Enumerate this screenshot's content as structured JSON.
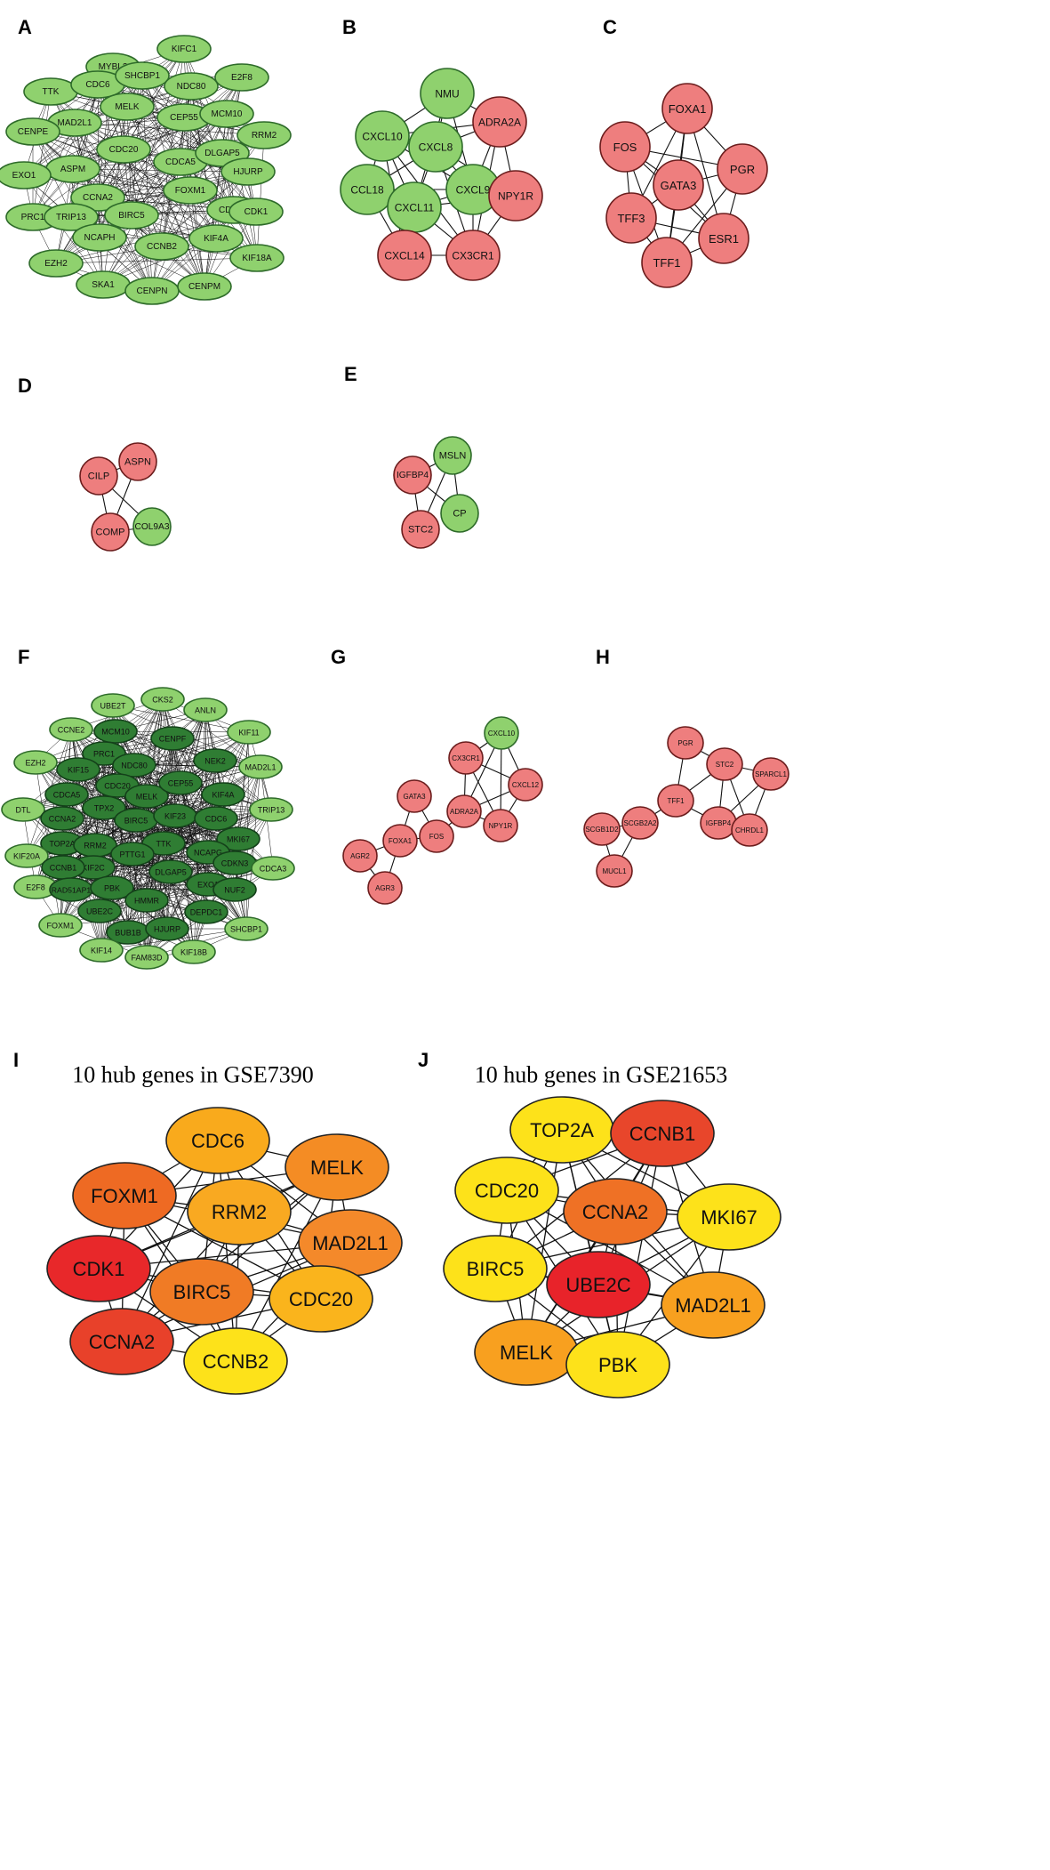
{
  "figure": {
    "panels": [
      {
        "label": "A",
        "title": "",
        "nodes": [
          {
            "id": "MYBL2",
            "fill": "green"
          },
          {
            "id": "KIFC1",
            "fill": "green"
          },
          {
            "id": "TTK",
            "fill": "green"
          },
          {
            "id": "CDC6",
            "fill": "green"
          },
          {
            "id": "SHCBP1",
            "fill": "green"
          },
          {
            "id": "NDC80",
            "fill": "green"
          },
          {
            "id": "E2F8",
            "fill": "green"
          },
          {
            "id": "MAD2L1",
            "fill": "green"
          },
          {
            "id": "MELK",
            "fill": "green"
          },
          {
            "id": "CEP55",
            "fill": "green"
          },
          {
            "id": "MCM10",
            "fill": "green"
          },
          {
            "id": "CENPE",
            "fill": "green"
          },
          {
            "id": "RRM2",
            "fill": "green"
          },
          {
            "id": "CDC20",
            "fill": "green"
          },
          {
            "id": "CDCA5",
            "fill": "green"
          },
          {
            "id": "DLGAP5",
            "fill": "green"
          },
          {
            "id": "ASPM",
            "fill": "green"
          },
          {
            "id": "HJURP",
            "fill": "green"
          },
          {
            "id": "EXO1",
            "fill": "green"
          },
          {
            "id": "CCNA2",
            "fill": "green"
          },
          {
            "id": "FOXM1",
            "fill": "green"
          },
          {
            "id": "PRC1",
            "fill": "green"
          },
          {
            "id": "TRIP13",
            "fill": "green"
          },
          {
            "id": "BIRC5",
            "fill": "green"
          },
          {
            "id": "CDCA3",
            "fill": "green"
          },
          {
            "id": "CDK1",
            "fill": "green"
          },
          {
            "id": "NCAPH",
            "fill": "green"
          },
          {
            "id": "KIF4A",
            "fill": "green"
          },
          {
            "id": "EZH2",
            "fill": "green"
          },
          {
            "id": "CCNB2",
            "fill": "green"
          },
          {
            "id": "KIF18A",
            "fill": "green"
          },
          {
            "id": "SKA1",
            "fill": "green"
          },
          {
            "id": "CENPN",
            "fill": "green"
          },
          {
            "id": "CENPM",
            "fill": "green"
          }
        ]
      },
      {
        "label": "B",
        "title": "",
        "nodes": [
          {
            "id": "NMU",
            "fill": "green"
          },
          {
            "id": "ADRA2A",
            "fill": "red"
          },
          {
            "id": "CXCL10",
            "fill": "green"
          },
          {
            "id": "CXCL8",
            "fill": "green"
          },
          {
            "id": "CCL18",
            "fill": "green"
          },
          {
            "id": "CXCL9",
            "fill": "green"
          },
          {
            "id": "NPY1R",
            "fill": "red"
          },
          {
            "id": "CXCL11",
            "fill": "green"
          },
          {
            "id": "CXCL14",
            "fill": "red"
          },
          {
            "id": "CX3CR1",
            "fill": "red"
          }
        ]
      },
      {
        "label": "C",
        "title": "",
        "nodes": [
          {
            "id": "FOXA1",
            "fill": "red"
          },
          {
            "id": "FOS",
            "fill": "red"
          },
          {
            "id": "PGR",
            "fill": "red"
          },
          {
            "id": "GATA3",
            "fill": "red"
          },
          {
            "id": "TFF3",
            "fill": "red"
          },
          {
            "id": "ESR1",
            "fill": "red"
          },
          {
            "id": "TFF1",
            "fill": "red"
          }
        ]
      },
      {
        "label": "D",
        "title": "",
        "nodes": [
          {
            "id": "CILP",
            "fill": "red"
          },
          {
            "id": "ASPN",
            "fill": "red"
          },
          {
            "id": "COMP",
            "fill": "red"
          },
          {
            "id": "COL9A3",
            "fill": "green"
          }
        ]
      },
      {
        "label": "E",
        "title": "",
        "nodes": [
          {
            "id": "MSLN",
            "fill": "green"
          },
          {
            "id": "IGFBP4",
            "fill": "red"
          },
          {
            "id": "CP",
            "fill": "green"
          },
          {
            "id": "STC2",
            "fill": "red"
          }
        ]
      },
      {
        "label": "F",
        "title": "",
        "nodes": [
          {
            "id": "UBE2T",
            "fill": "green"
          },
          {
            "id": "CKS2",
            "fill": "green"
          },
          {
            "id": "ANLN",
            "fill": "green"
          },
          {
            "id": "CCNE2",
            "fill": "green"
          },
          {
            "id": "MCM10",
            "fill": "dgreen"
          },
          {
            "id": "CENPF",
            "fill": "dgreen"
          },
          {
            "id": "KIF11",
            "fill": "green"
          },
          {
            "id": "PRC1",
            "fill": "dgreen"
          },
          {
            "id": "EZH2",
            "fill": "green"
          },
          {
            "id": "KIF15",
            "fill": "dgreen"
          },
          {
            "id": "NDC80",
            "fill": "dgreen"
          },
          {
            "id": "NEK2",
            "fill": "dgreen"
          },
          {
            "id": "MAD2L1",
            "fill": "green"
          },
          {
            "id": "CDC20",
            "fill": "dgreen"
          },
          {
            "id": "CDCA5",
            "fill": "dgreen"
          },
          {
            "id": "MELK",
            "fill": "dgreen"
          },
          {
            "id": "CEP55",
            "fill": "dgreen"
          },
          {
            "id": "KIF4A",
            "fill": "dgreen"
          },
          {
            "id": "DTL",
            "fill": "green"
          },
          {
            "id": "TPX2",
            "fill": "dgreen"
          },
          {
            "id": "TRIP13",
            "fill": "green"
          },
          {
            "id": "CCNA2",
            "fill": "dgreen"
          },
          {
            "id": "BIRC5",
            "fill": "dgreen"
          },
          {
            "id": "KIF23",
            "fill": "dgreen"
          },
          {
            "id": "CDC6",
            "fill": "dgreen"
          },
          {
            "id": "TOP2A",
            "fill": "dgreen"
          },
          {
            "id": "RRM2",
            "fill": "dgreen"
          },
          {
            "id": "MKI67",
            "fill": "dgreen"
          },
          {
            "id": "KIF20A",
            "fill": "green"
          },
          {
            "id": "TTK",
            "fill": "dgreen"
          },
          {
            "id": "NCAPG",
            "fill": "dgreen"
          },
          {
            "id": "KIF2C",
            "fill": "dgreen"
          },
          {
            "id": "PTTG1",
            "fill": "dgreen"
          },
          {
            "id": "CCNB1",
            "fill": "dgreen"
          },
          {
            "id": "CDKN3",
            "fill": "dgreen"
          },
          {
            "id": "CDCA3",
            "fill": "green"
          },
          {
            "id": "DLGAP5",
            "fill": "dgreen"
          },
          {
            "id": "E2F8",
            "fill": "green"
          },
          {
            "id": "RAD51AP1",
            "fill": "dgreen"
          },
          {
            "id": "PBK",
            "fill": "dgreen"
          },
          {
            "id": "EXO1",
            "fill": "dgreen"
          },
          {
            "id": "NUF2",
            "fill": "dgreen"
          },
          {
            "id": "HMMR",
            "fill": "dgreen"
          },
          {
            "id": "UBE2C",
            "fill": "dgreen"
          },
          {
            "id": "DEPDC1",
            "fill": "dgreen"
          },
          {
            "id": "FOXM1",
            "fill": "green"
          },
          {
            "id": "BUB1B",
            "fill": "dgreen"
          },
          {
            "id": "HJURP",
            "fill": "dgreen"
          },
          {
            "id": "SHCBP1",
            "fill": "green"
          },
          {
            "id": "KIF14",
            "fill": "green"
          },
          {
            "id": "FAM83D",
            "fill": "green"
          },
          {
            "id": "KIF18B",
            "fill": "green"
          }
        ]
      },
      {
        "label": "G",
        "title": "",
        "nodes": [
          {
            "id": "CXCL10",
            "fill": "green"
          },
          {
            "id": "CX3CR1",
            "fill": "red"
          },
          {
            "id": "CXCL12",
            "fill": "red"
          },
          {
            "id": "GATA3",
            "fill": "red"
          },
          {
            "id": "ADRA2A",
            "fill": "red"
          },
          {
            "id": "NPY1R",
            "fill": "red"
          },
          {
            "id": "FOXA1",
            "fill": "red"
          },
          {
            "id": "FOS",
            "fill": "red"
          },
          {
            "id": "AGR2",
            "fill": "red"
          },
          {
            "id": "AGR3",
            "fill": "red"
          }
        ]
      },
      {
        "label": "H",
        "title": "",
        "nodes": [
          {
            "id": "PGR",
            "fill": "red"
          },
          {
            "id": "STC2",
            "fill": "red"
          },
          {
            "id": "SPARCL1",
            "fill": "red"
          },
          {
            "id": "TFF1",
            "fill": "red"
          },
          {
            "id": "SCGB1D2",
            "fill": "red"
          },
          {
            "id": "SCGB2A2",
            "fill": "red"
          },
          {
            "id": "IGFBP4",
            "fill": "red"
          },
          {
            "id": "CHRDL1",
            "fill": "red"
          },
          {
            "id": "MUCL1",
            "fill": "red"
          }
        ]
      },
      {
        "label": "I",
        "title": "10 hub genes in GSE7390",
        "nodes": [
          {
            "id": "CDC6",
            "fill": "#f9aa1c"
          },
          {
            "id": "MELK",
            "fill": "#f48c24"
          },
          {
            "id": "FOXM1",
            "fill": "#ee6a23"
          },
          {
            "id": "RRM2",
            "fill": "#f9a921"
          },
          {
            "id": "MAD2L1",
            "fill": "#f4892a"
          },
          {
            "id": "CDK1",
            "fill": "#e8282a"
          },
          {
            "id": "BIRC5",
            "fill": "#f07b25"
          },
          {
            "id": "CDC20",
            "fill": "#fab41c"
          },
          {
            "id": "CCNA2",
            "fill": "#e8412a"
          },
          {
            "id": "CCNB2",
            "fill": "#fde21a"
          }
        ]
      },
      {
        "label": "J",
        "title": "10 hub genes in GSE21653",
        "nodes": [
          {
            "id": "TOP2A",
            "fill": "#fde21a"
          },
          {
            "id": "CCNB1",
            "fill": "#e8462b"
          },
          {
            "id": "CDC20",
            "fill": "#fde21a"
          },
          {
            "id": "CCNA2",
            "fill": "#ef7125"
          },
          {
            "id": "MKI67",
            "fill": "#fde21a"
          },
          {
            "id": "BIRC5",
            "fill": "#fde21a"
          },
          {
            "id": "UBE2C",
            "fill": "#e8232a"
          },
          {
            "id": "MAD2L1",
            "fill": "#f8a01f"
          },
          {
            "id": "MELK",
            "fill": "#f8a01f"
          },
          {
            "id": "PBK",
            "fill": "#fde21a"
          }
        ]
      }
    ],
    "colors": {
      "green": "#8fd16e",
      "green_stroke": "#2e6b2a",
      "dgreen": "#2f7d33",
      "dgreen_stroke": "#14401a",
      "red": "#ee7e7e",
      "red_stroke": "#6b1d1d",
      "hub_stroke": "#222222"
    }
  }
}
